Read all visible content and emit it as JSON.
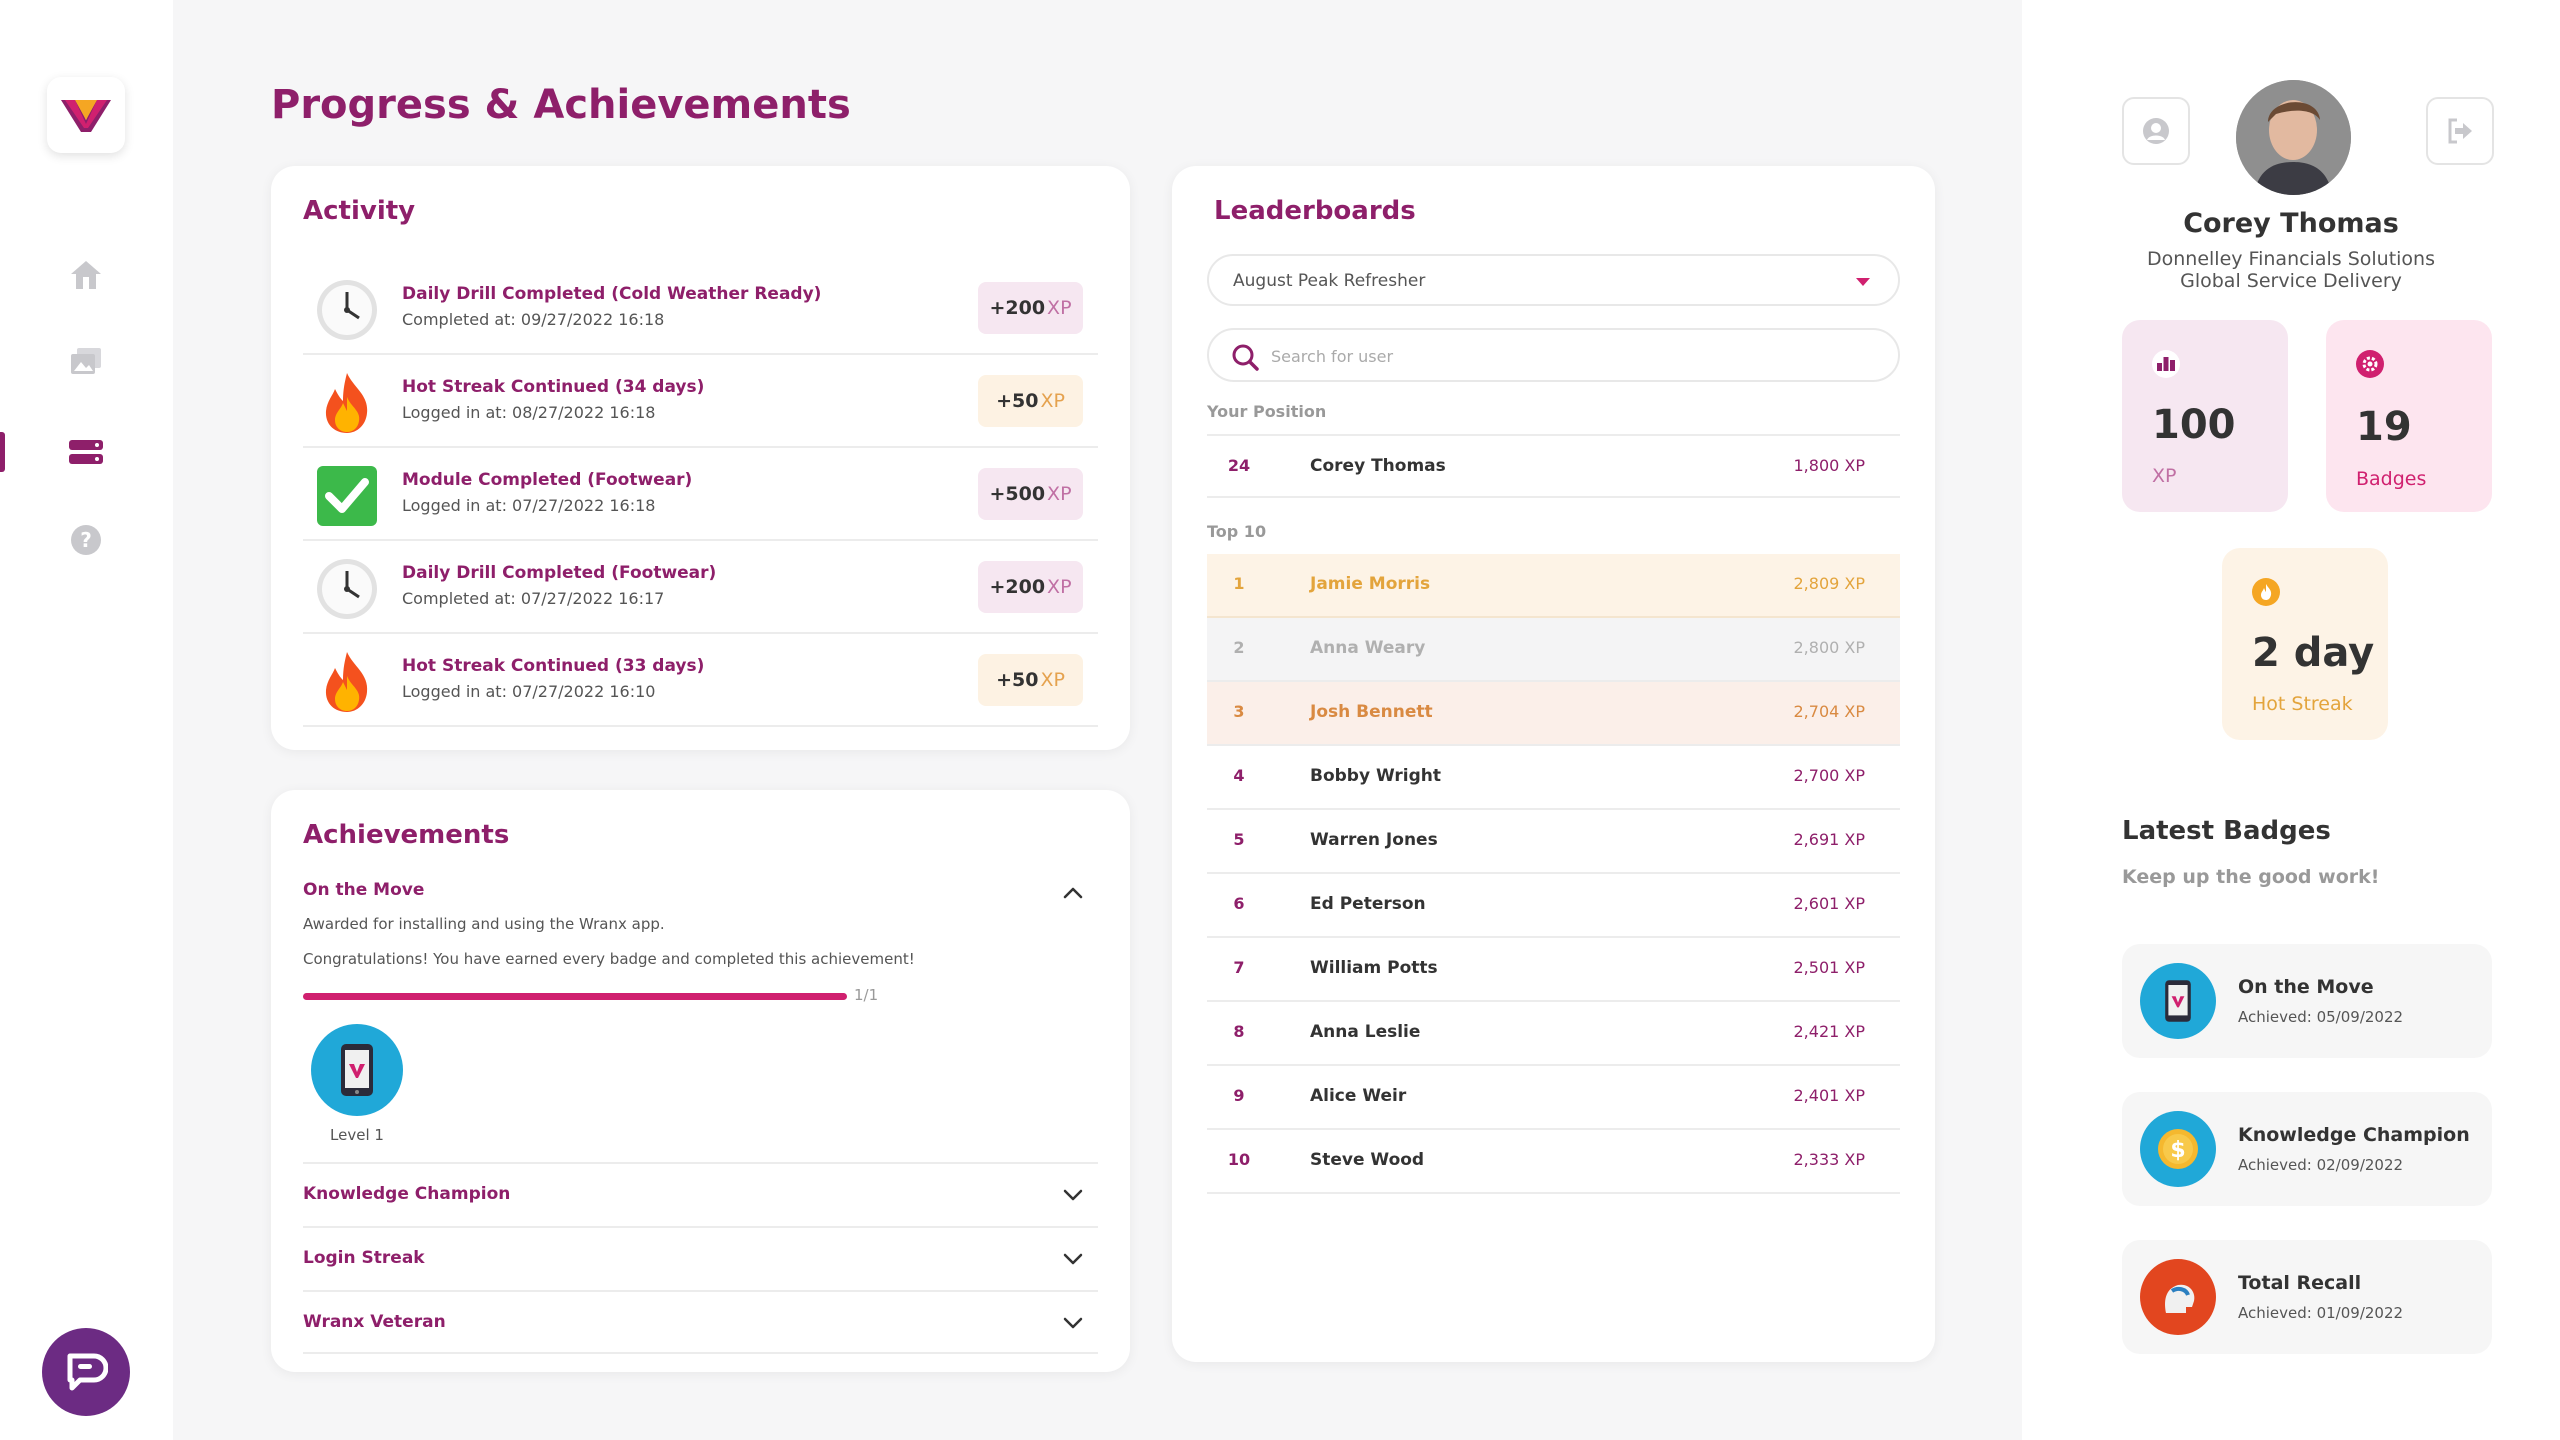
{
  "page": {
    "title": "Progress & Achievements"
  },
  "nav": {
    "items": [
      {
        "name": "home",
        "icon": "home-icon"
      },
      {
        "name": "library",
        "icon": "image-stack-icon"
      },
      {
        "name": "progress",
        "icon": "list-icon",
        "active": true
      },
      {
        "name": "help",
        "icon": "help-icon"
      }
    ],
    "chat_icon": "chat-bubble-icon"
  },
  "activity": {
    "title": "Activity",
    "items": [
      {
        "icon": "clock-icon",
        "title": "Daily Drill Completed (Cold Weather Ready)",
        "subtitle": "Completed at: 09/27/2022 16:18",
        "xp": "+200",
        "unit": "XP",
        "style": "purple"
      },
      {
        "icon": "fire-icon",
        "title": "Hot Streak Continued (34 days)",
        "subtitle": "Logged in at: 08/27/2022 16:18",
        "xp": "+50",
        "unit": "XP",
        "style": "orange"
      },
      {
        "icon": "checkmark-icon",
        "title": "Module Completed (Footwear)",
        "subtitle": "Logged in at: 07/27/2022 16:18",
        "xp": "+500",
        "unit": "XP",
        "style": "purple"
      },
      {
        "icon": "clock-icon",
        "title": "Daily Drill Completed (Footwear)",
        "subtitle": "Completed at: 07/27/2022 16:17",
        "xp": "+200",
        "unit": "XP",
        "style": "purple"
      },
      {
        "icon": "fire-icon",
        "title": "Hot Streak Continued (33 days)",
        "subtitle": "Logged in at: 07/27/2022 16:10",
        "xp": "+50",
        "unit": "XP",
        "style": "orange"
      }
    ]
  },
  "achievements": {
    "title": "Achievements",
    "expanded": {
      "title": "On the Move",
      "description": "Awarded for installing and using the Wranx app.",
      "congrats": "Congratulations! You have earned every badge and completed this achievement!",
      "progress": 1.0,
      "progress_label": "1/1",
      "badge_icon": "phone-icon",
      "badge_level": "Level 1"
    },
    "collapsed": [
      "Knowledge Champion",
      "Login Streak",
      "Wranx Veteran"
    ]
  },
  "leaderboards": {
    "title": "Leaderboards",
    "selected": "August Peak Refresher",
    "search_placeholder": "Search for user",
    "your_position_label": "Your Position",
    "your_position": {
      "rank": "24",
      "name": "Corey Thomas",
      "xp": "1,800 XP"
    },
    "top_label": "Top 10",
    "top": [
      {
        "rank": "1",
        "name": "Jamie Morris",
        "xp": "2,809 XP",
        "style": "gold"
      },
      {
        "rank": "2",
        "name": "Anna Weary",
        "xp": "2,800 XP",
        "style": "silver"
      },
      {
        "rank": "3",
        "name": "Josh Bennett",
        "xp": "2,704 XP",
        "style": "bronze"
      },
      {
        "rank": "4",
        "name": "Bobby Wright",
        "xp": "2,700 XP",
        "style": ""
      },
      {
        "rank": "5",
        "name": "Warren Jones",
        "xp": "2,691 XP",
        "style": ""
      },
      {
        "rank": "6",
        "name": "Ed Peterson",
        "xp": "2,601 XP",
        "style": ""
      },
      {
        "rank": "7",
        "name": "William Potts",
        "xp": "2,501 XP",
        "style": ""
      },
      {
        "rank": "8",
        "name": "Anna Leslie",
        "xp": "2,421 XP",
        "style": ""
      },
      {
        "rank": "9",
        "name": "Alice Weir",
        "xp": "2,401 XP",
        "style": ""
      },
      {
        "rank": "10",
        "name": "Steve Wood",
        "xp": "2,333 XP",
        "style": ""
      }
    ]
  },
  "profile": {
    "name": "Corey Thomas",
    "org_line1": "Donnelley Financials Solutions",
    "org_line2": "Global Service Delivery",
    "stats": {
      "xp": {
        "value": "100",
        "label": "XP"
      },
      "badges": {
        "value": "19",
        "label": "Badges"
      },
      "streak": {
        "value": "2 day",
        "label": "Hot Streak"
      }
    }
  },
  "latest_badges": {
    "title": "Latest Badges",
    "subtitle": "Keep up the good work!",
    "items": [
      {
        "name": "On the Move",
        "date": "Achieved: 05/09/2022",
        "icon": "phone-icon",
        "color": "#20a8d8"
      },
      {
        "name": "Knowledge Champion",
        "date": "Achieved: 02/09/2022",
        "icon": "coin-icon",
        "color": "#20a8d8"
      },
      {
        "name": "Total Recall",
        "date": "Achieved: 01/09/2022",
        "icon": "head-icon",
        "color": "#e2461f"
      }
    ]
  },
  "colors": {
    "brand": "#8e1f6a",
    "accent": "#d0206f",
    "gold": "#e3a43c",
    "chat": "#6c2b83"
  }
}
